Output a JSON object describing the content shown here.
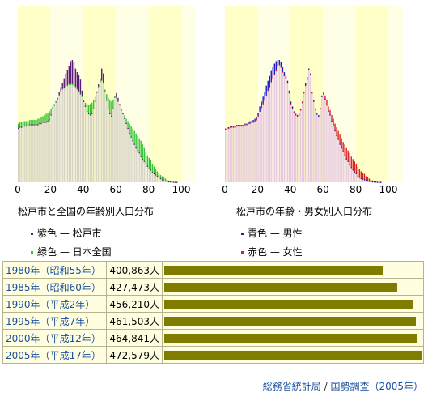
{
  "colors": {
    "band_light": "#ffffc8",
    "band_dark": "#ffffe6",
    "matsudo": "#5c1c78",
    "japan": "#33c433",
    "male": "#1a1acc",
    "female": "#dd2222",
    "table_bg": "#fffee0",
    "table_bar": "#807c00",
    "link": "#1a4f9c"
  },
  "chart_data": [
    {
      "type": "bar",
      "title": "松戸市と全国の年齢別人口分布",
      "x_ticks": [
        "0",
        "20",
        "40",
        "60",
        "80",
        "100"
      ],
      "xlim": [
        0,
        100
      ],
      "ages_start": 0,
      "series": [
        {
          "name": "紫色 — 松戸市",
          "values": [
            0.44,
            0.45,
            0.45,
            0.46,
            0.46,
            0.46,
            0.46,
            0.47,
            0.47,
            0.47,
            0.47,
            0.47,
            0.47,
            0.48,
            0.48,
            0.49,
            0.49,
            0.49,
            0.5,
            0.51,
            0.55,
            0.6,
            0.63,
            0.66,
            0.69,
            0.74,
            0.78,
            0.81,
            0.85,
            0.89,
            0.92,
            0.95,
            0.99,
            1.0,
            0.98,
            0.93,
            0.9,
            0.88,
            0.84,
            0.75,
            0.66,
            0.62,
            0.58,
            0.56,
            0.55,
            0.56,
            0.6,
            0.66,
            0.74,
            0.8,
            0.85,
            0.93,
            0.89,
            0.74,
            0.67,
            0.6,
            0.56,
            0.54,
            0.6,
            0.7,
            0.73,
            0.69,
            0.64,
            0.59,
            0.56,
            0.52,
            0.48,
            0.44,
            0.4,
            0.37,
            0.34,
            0.31,
            0.28,
            0.26,
            0.24,
            0.21,
            0.19,
            0.17,
            0.15,
            0.13,
            0.11,
            0.1,
            0.08,
            0.07,
            0.06,
            0.05,
            0.04,
            0.03,
            0.02,
            0.01,
            0.01,
            0.005,
            0.003,
            0.002,
            0.001,
            0.0,
            0.0,
            0.0,
            0.0,
            0.0,
            0.0
          ]
        },
        {
          "name": "緑色 — 日本全国",
          "values": [
            0.48,
            0.49,
            0.49,
            0.5,
            0.5,
            0.5,
            0.5,
            0.51,
            0.51,
            0.51,
            0.51,
            0.51,
            0.52,
            0.52,
            0.53,
            0.54,
            0.55,
            0.56,
            0.57,
            0.58,
            0.6,
            0.62,
            0.64,
            0.66,
            0.68,
            0.71,
            0.74,
            0.76,
            0.77,
            0.78,
            0.79,
            0.8,
            0.8,
            0.8,
            0.79,
            0.78,
            0.76,
            0.74,
            0.72,
            0.7,
            0.67,
            0.65,
            0.64,
            0.63,
            0.64,
            0.65,
            0.67,
            0.7,
            0.74,
            0.78,
            0.82,
            0.83,
            0.81,
            0.76,
            0.72,
            0.69,
            0.67,
            0.66,
            0.67,
            0.7,
            0.69,
            0.66,
            0.63,
            0.6,
            0.57,
            0.55,
            0.52,
            0.5,
            0.48,
            0.46,
            0.44,
            0.42,
            0.4,
            0.38,
            0.36,
            0.34,
            0.31,
            0.28,
            0.25,
            0.22,
            0.2,
            0.18,
            0.15,
            0.13,
            0.11,
            0.09,
            0.07,
            0.06,
            0.05,
            0.04,
            0.03,
            0.02,
            0.015,
            0.01,
            0.006,
            0.004,
            0.002,
            0.001,
            0.0,
            0.0,
            0.0
          ]
        }
      ]
    },
    {
      "type": "bar",
      "title": "松戸市の年齢・男女別人口分布",
      "x_ticks": [
        "0",
        "20",
        "40",
        "60",
        "80",
        "100"
      ],
      "xlim": [
        0,
        100
      ],
      "ages_start": 0,
      "series": [
        {
          "name": "青色 — 男性",
          "values": [
            0.44,
            0.45,
            0.45,
            0.46,
            0.46,
            0.46,
            0.46,
            0.47,
            0.47,
            0.47,
            0.47,
            0.47,
            0.48,
            0.48,
            0.49,
            0.5,
            0.5,
            0.51,
            0.52,
            0.53,
            0.57,
            0.62,
            0.66,
            0.7,
            0.74,
            0.79,
            0.83,
            0.87,
            0.91,
            0.94,
            0.97,
            0.99,
            1.0,
            1.0,
            0.98,
            0.94,
            0.9,
            0.87,
            0.83,
            0.75,
            0.66,
            0.62,
            0.58,
            0.56,
            0.55,
            0.56,
            0.6,
            0.66,
            0.74,
            0.81,
            0.86,
            0.93,
            0.89,
            0.74,
            0.67,
            0.6,
            0.56,
            0.54,
            0.6,
            0.7,
            0.72,
            0.68,
            0.63,
            0.58,
            0.55,
            0.5,
            0.46,
            0.42,
            0.38,
            0.35,
            0.31,
            0.28,
            0.25,
            0.22,
            0.19,
            0.17,
            0.14,
            0.12,
            0.1,
            0.08,
            0.07,
            0.05,
            0.04,
            0.03,
            0.025,
            0.02,
            0.015,
            0.01,
            0.007,
            0.005,
            0.003,
            0.002,
            0.001,
            0.0,
            0.0,
            0.0,
            0.0,
            0.0,
            0.0,
            0.0,
            0.0
          ]
        },
        {
          "name": "赤色 — 女性",
          "values": [
            0.43,
            0.44,
            0.44,
            0.45,
            0.45,
            0.45,
            0.45,
            0.46,
            0.46,
            0.46,
            0.46,
            0.46,
            0.47,
            0.47,
            0.48,
            0.48,
            0.49,
            0.49,
            0.5,
            0.51,
            0.54,
            0.58,
            0.61,
            0.64,
            0.67,
            0.71,
            0.75,
            0.78,
            0.82,
            0.85,
            0.88,
            0.91,
            0.95,
            0.96,
            0.94,
            0.9,
            0.87,
            0.85,
            0.81,
            0.73,
            0.64,
            0.6,
            0.57,
            0.55,
            0.54,
            0.55,
            0.59,
            0.65,
            0.73,
            0.79,
            0.84,
            0.92,
            0.88,
            0.73,
            0.66,
            0.6,
            0.56,
            0.55,
            0.61,
            0.71,
            0.74,
            0.71,
            0.67,
            0.62,
            0.59,
            0.55,
            0.52,
            0.48,
            0.45,
            0.42,
            0.39,
            0.36,
            0.33,
            0.31,
            0.28,
            0.26,
            0.24,
            0.21,
            0.19,
            0.17,
            0.15,
            0.13,
            0.11,
            0.09,
            0.08,
            0.07,
            0.05,
            0.04,
            0.03,
            0.02,
            0.015,
            0.01,
            0.006,
            0.004,
            0.002,
            0.001,
            0.0,
            0.0,
            0.0,
            0.0,
            0.0
          ]
        }
      ]
    }
  ],
  "population_table": {
    "max_value": 472579,
    "rows": [
      {
        "year": "1980年",
        "era": "（",
        "era_name": "昭和",
        "era_year": "55年）",
        "value_text": "400,863人",
        "value": 400863
      },
      {
        "year": "1985年",
        "era": "（",
        "era_name": "昭和",
        "era_year": "60年）",
        "value_text": "427,473人",
        "value": 427473
      },
      {
        "year": "1990年",
        "era": "（",
        "era_name": "平成",
        "era_year": "2年）",
        "value_text": "456,210人",
        "value": 456210
      },
      {
        "year": "1995年",
        "era": "（",
        "era_name": "平成",
        "era_year": "7年）",
        "value_text": "461,503人",
        "value": 461503
      },
      {
        "year": "2000年",
        "era": "（",
        "era_name": "平成",
        "era_year": "12年）",
        "value_text": "464,841人",
        "value": 464841
      },
      {
        "year": "2005年",
        "era": "（",
        "era_name": "平成",
        "era_year": "17年）",
        "value_text": "472,579人",
        "value": 472579
      }
    ]
  },
  "source": {
    "agency": "総務省統計局",
    "separator": "/",
    "census": "国勢調査",
    "year": "（2005年）"
  }
}
